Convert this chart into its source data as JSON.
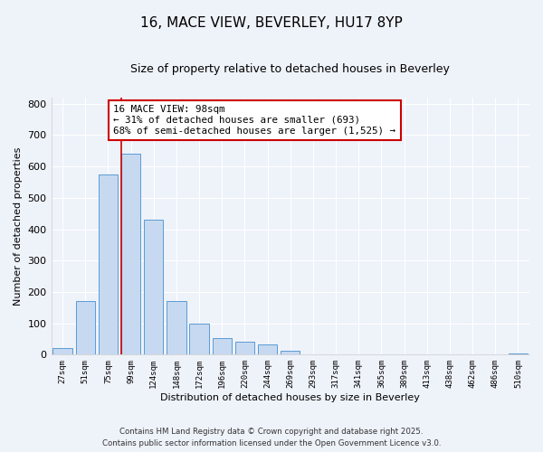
{
  "title": "16, MACE VIEW, BEVERLEY, HU17 8YP",
  "subtitle": "Size of property relative to detached houses in Beverley",
  "xlabel": "Distribution of detached houses by size in Beverley",
  "ylabel": "Number of detached properties",
  "bar_labels": [
    "27sqm",
    "51sqm",
    "75sqm",
    "99sqm",
    "124sqm",
    "148sqm",
    "172sqm",
    "196sqm",
    "220sqm",
    "244sqm",
    "269sqm",
    "293sqm",
    "317sqm",
    "341sqm",
    "365sqm",
    "389sqm",
    "413sqm",
    "438sqm",
    "462sqm",
    "486sqm",
    "510sqm"
  ],
  "bar_values": [
    20,
    170,
    575,
    640,
    430,
    170,
    100,
    52,
    40,
    33,
    12,
    0,
    0,
    0,
    0,
    0,
    0,
    0,
    0,
    0,
    3
  ],
  "bar_color": "#c6d9f0",
  "bar_edge_color": "#5b9bd5",
  "marker_bin_index": 3,
  "marker_color": "#cc0000",
  "annotation_text": "16 MACE VIEW: 98sqm\n← 31% of detached houses are smaller (693)\n68% of semi-detached houses are larger (1,525) →",
  "annotation_box_color": "#ffffff",
  "annotation_box_edge": "#cc0000",
  "ylim": [
    0,
    820
  ],
  "yticks": [
    0,
    100,
    200,
    300,
    400,
    500,
    600,
    700,
    800
  ],
  "footer_line1": "Contains HM Land Registry data © Crown copyright and database right 2025.",
  "footer_line2": "Contains public sector information licensed under the Open Government Licence v3.0.",
  "background_color": "#eef2f9"
}
